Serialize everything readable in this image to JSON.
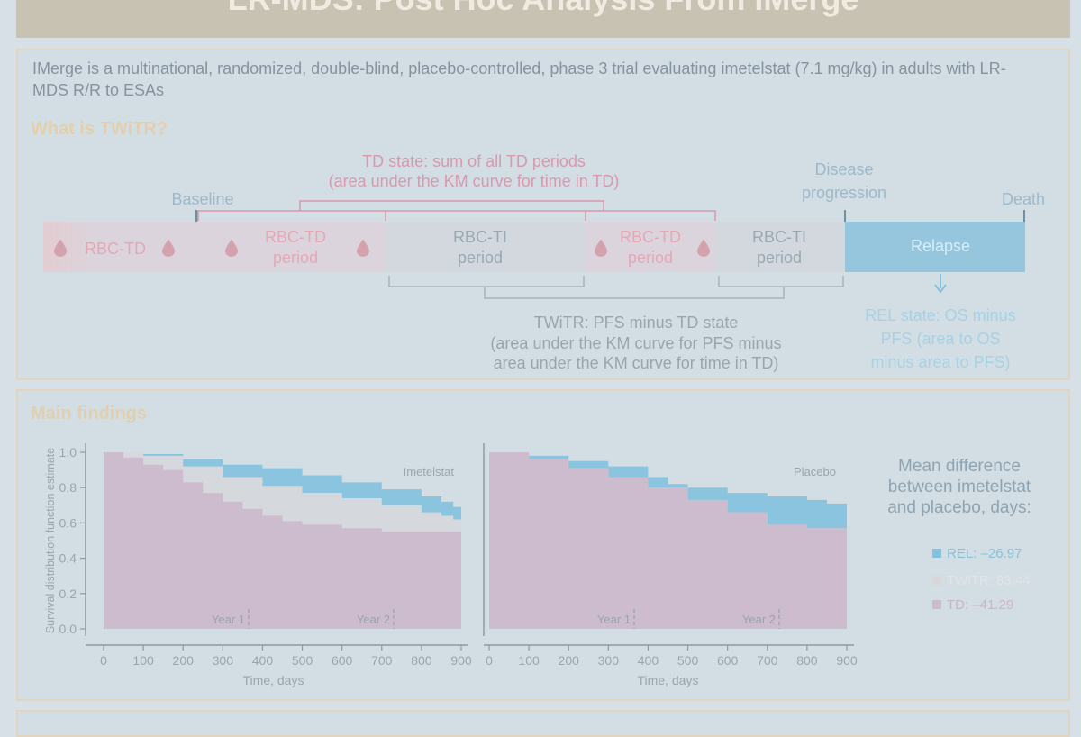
{
  "title": "LR-MDS: Post Hoc Analysis From IMerge",
  "intro": {
    "text": "IMerge is a multinational, randomized, double-blind, placebo-controlled, phase 3 trial evaluating imetelstat (7.1 mg/kg) in adults with LR-MDS R/R to ESAs",
    "heading": "What is TWiTR?"
  },
  "diagram": {
    "td_state": [
      "TD state: sum of all TD periods",
      "(area under the KM curve for time in TD)"
    ],
    "baseline": "Baseline",
    "disease_progression": [
      "Disease",
      "progression"
    ],
    "death": "Death",
    "segments": {
      "rbc_td": "RBC-TD",
      "td_period_1": [
        "RBC-TD",
        "period"
      ],
      "ti_period_1": [
        "RBC-TI",
        "period"
      ],
      "td_period_2": [
        "RBC-TD",
        "period"
      ],
      "ti_period_2": [
        "RBC-TI",
        "period"
      ],
      "relapse": "Relapse"
    },
    "twitr": [
      "TWiTR: PFS minus TD state",
      "(area under the KM curve for PFS minus",
      "area under the KM curve for time in TD)"
    ],
    "rel_state": [
      "REL state: OS minus",
      "PFS (area to OS",
      "minus area to PFS)"
    ]
  },
  "findings": {
    "heading": "Main findings",
    "mean_diff": [
      "Mean difference",
      "between imetelstat",
      "and placebo, days:"
    ],
    "legend": [
      {
        "label": "REL: –26.97",
        "color": "#86c1dc"
      },
      {
        "label": "TWiTR: 83.44",
        "color": "#d7d6d9"
      },
      {
        "label": "TD: –41.29",
        "color": "#ccbccb"
      }
    ]
  },
  "chart_data": [
    {
      "type": "area",
      "title": "Imetelstat",
      "xlabel": "Time, days",
      "ylabel": "Survival distribution function estimate",
      "xlim": [
        0,
        900
      ],
      "ylim": [
        0,
        1.0
      ],
      "x_ticks": [
        0,
        100,
        200,
        300,
        400,
        500,
        600,
        700,
        800,
        900
      ],
      "y_ticks": [
        "0.0",
        "0.2",
        "0.4",
        "0.6",
        "0.8",
        "1.0"
      ],
      "markers": [
        {
          "x": 365,
          "label": "Year 1"
        },
        {
          "x": 730,
          "label": "Year 2"
        }
      ],
      "series": [
        {
          "name": "REL",
          "points": [
            [
              0,
              1.0
            ],
            [
              100,
              0.99
            ],
            [
              200,
              0.96
            ],
            [
              300,
              0.93
            ],
            [
              400,
              0.91
            ],
            [
              500,
              0.87
            ],
            [
              600,
              0.83
            ],
            [
              700,
              0.79
            ],
            [
              800,
              0.75
            ],
            [
              850,
              0.72
            ],
            [
              880,
              0.69
            ],
            [
              900,
              0.6
            ]
          ]
        },
        {
          "name": "TWiTR",
          "points": [
            [
              0,
              1.0
            ],
            [
              100,
              0.98
            ],
            [
              200,
              0.92
            ],
            [
              300,
              0.86
            ],
            [
              400,
              0.81
            ],
            [
              500,
              0.77
            ],
            [
              600,
              0.74
            ],
            [
              700,
              0.7
            ],
            [
              800,
              0.66
            ],
            [
              850,
              0.64
            ],
            [
              880,
              0.62
            ],
            [
              900,
              0.6
            ]
          ]
        },
        {
          "name": "TD",
          "points": [
            [
              0,
              1.0
            ],
            [
              50,
              0.97
            ],
            [
              100,
              0.93
            ],
            [
              150,
              0.9
            ],
            [
              200,
              0.83
            ],
            [
              250,
              0.77
            ],
            [
              300,
              0.72
            ],
            [
              350,
              0.68
            ],
            [
              400,
              0.64
            ],
            [
              450,
              0.61
            ],
            [
              500,
              0.59
            ],
            [
              600,
              0.57
            ],
            [
              700,
              0.55
            ],
            [
              900,
              0.53
            ]
          ]
        }
      ]
    },
    {
      "type": "area",
      "title": "Placebo",
      "xlabel": "Time, days",
      "ylabel": "",
      "xlim": [
        0,
        900
      ],
      "ylim": [
        0,
        1.0
      ],
      "x_ticks": [
        0,
        100,
        200,
        300,
        400,
        500,
        600,
        700,
        800,
        900
      ],
      "y_ticks": [],
      "markers": [
        {
          "x": 365,
          "label": "Year 1"
        },
        {
          "x": 730,
          "label": "Year 2"
        }
      ],
      "series": [
        {
          "name": "REL",
          "points": [
            [
              0,
              1.0
            ],
            [
              100,
              0.98
            ],
            [
              200,
              0.95
            ],
            [
              300,
              0.92
            ],
            [
              400,
              0.86
            ],
            [
              450,
              0.82
            ],
            [
              500,
              0.8
            ],
            [
              600,
              0.77
            ],
            [
              700,
              0.75
            ],
            [
              800,
              0.73
            ],
            [
              850,
              0.71
            ],
            [
              900,
              0.7
            ]
          ]
        },
        {
          "name": "TWiTR",
          "points": [
            [
              0,
              1.0
            ],
            [
              100,
              0.96
            ],
            [
              200,
              0.91
            ],
            [
              300,
              0.86
            ],
            [
              400,
              0.8
            ],
            [
              500,
              0.73
            ],
            [
              600,
              0.66
            ],
            [
              700,
              0.59
            ],
            [
              800,
              0.57
            ],
            [
              900,
              0.5
            ]
          ]
        },
        {
          "name": "TD",
          "points": [
            [
              0,
              1.0
            ],
            [
              100,
              0.96
            ],
            [
              200,
              0.91
            ],
            [
              300,
              0.86
            ],
            [
              400,
              0.8
            ],
            [
              500,
              0.73
            ],
            [
              600,
              0.66
            ],
            [
              700,
              0.59
            ],
            [
              800,
              0.57
            ],
            [
              900,
              0.5
            ]
          ]
        }
      ]
    }
  ]
}
